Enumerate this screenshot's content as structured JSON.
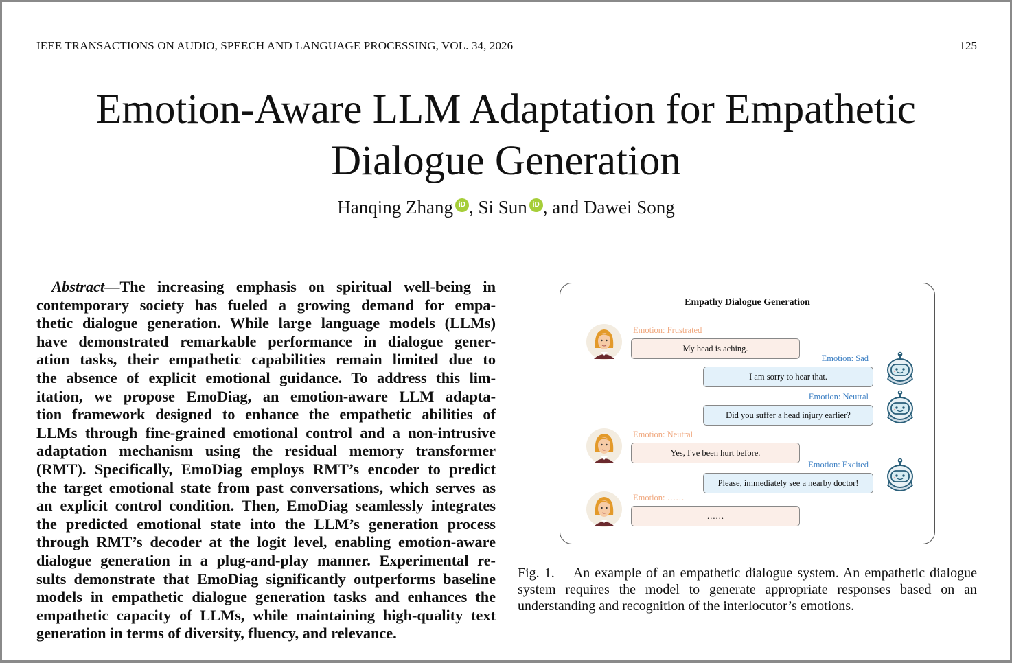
{
  "header": {
    "running_title": "IEEE TRANSACTIONS ON AUDIO, SPEECH AND LANGUAGE PROCESSING, VOL. 34, 2026",
    "page_number": "125"
  },
  "paper": {
    "title_lines": [
      "Emotion-Aware LLM Adaptation for Empathetic",
      "Dialogue Generation"
    ],
    "authors": [
      "Hanqing Zhang",
      ", Si Sun",
      ", and Dawei Song"
    ],
    "orcid_label": "iD"
  },
  "abstract": {
    "label": "Abstract",
    "first_line_rest": "—The increasing emphasis on spiritual well-being in",
    "lines": [
      "contemporary society has fueled a growing demand for empa-",
      "thetic dialogue generation. While large language models (LLMs)",
      "have demonstrated remarkable performance in dialogue gener-",
      "ation tasks, their empathetic capabilities remain limited due to",
      "the absence of explicit emotional guidance. To address this lim-",
      "itation, we propose EmoDiag, an emotion-aware LLM adapta-",
      "tion framework designed to enhance the empathetic abilities of",
      "LLMs through fine-grained emotional control and a non-intrusive",
      "adaptation mechanism using the residual memory transformer",
      "(RMT). Specifically, EmoDiag employs RMT’s encoder to predict",
      "the target emotional state from past conversations, which serves as",
      "an explicit control condition. Then, EmoDiag seamlessly integrates",
      "the predicted emotional state into the LLM’s generation process",
      "through RMT’s decoder at the logit level, enabling emotion-aware",
      "dialogue generation in a plug-and-play manner. Experimental re-",
      "sults demonstrate that EmoDiag significantly outperforms baseline",
      "models in empathetic dialogue generation tasks and enhances the",
      "empathetic capacity of LLMs, while maintaining high-quality text",
      "generation in terms of diversity, fluency, and relevance."
    ]
  },
  "figure": {
    "title": "Empathy Dialogue Generation",
    "turns": [
      {
        "speaker": "human",
        "emotion": "Emotion: Frustrated",
        "text": "My head is aching."
      },
      {
        "speaker": "bot",
        "emotion": "Emotion: Sad",
        "text": "I am sorry to hear that."
      },
      {
        "speaker": "bot",
        "emotion": "Emotion: Neutral",
        "text": "Did you suffer a head injury earlier?"
      },
      {
        "speaker": "human",
        "emotion": "Emotion: Neutral",
        "text": "Yes, I've been hurt before."
      },
      {
        "speaker": "bot",
        "emotion": "Emotion: Excited",
        "text": "Please, immediately see a nearby doctor!"
      },
      {
        "speaker": "human",
        "emotion": "Emotion: ……",
        "text": "……"
      }
    ],
    "colors": {
      "human_emotion": "#f0a980",
      "bot_emotion": "#3c7fc3",
      "human_bubble": "#fbeee8",
      "bot_bubble": "#e3f1fa"
    },
    "icons": {
      "human": "woman-avatar-icon",
      "bot": "robot-avatar-icon"
    },
    "caption_lines": [
      "Fig. 1.    An example of an empathetic dialogue system. An empathetic dialogue",
      "system requires the model to generate appropriate responses based on an",
      "understanding and recognition of the interlocutor’s emotions."
    ]
  }
}
